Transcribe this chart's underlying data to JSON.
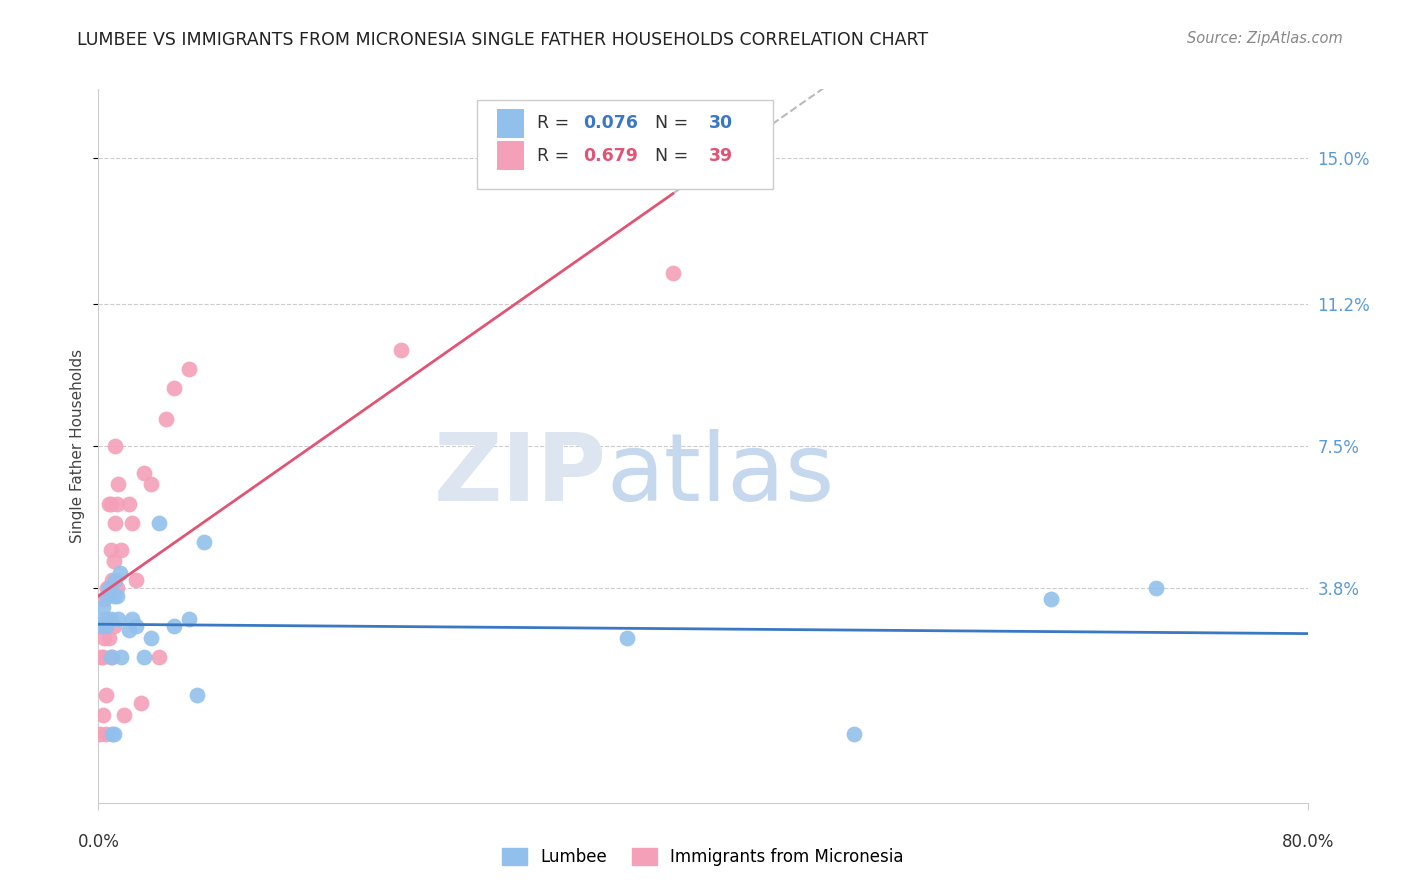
{
  "title": "LUMBEE VS IMMIGRANTS FROM MICRONESIA SINGLE FATHER HOUSEHOLDS CORRELATION CHART",
  "source": "Source: ZipAtlas.com",
  "ylabel": "Single Father Households",
  "ytick_labels": [
    "15.0%",
    "11.2%",
    "7.5%",
    "3.8%"
  ],
  "ytick_values": [
    0.15,
    0.112,
    0.075,
    0.038
  ],
  "xlim": [
    0.0,
    0.8
  ],
  "ylim": [
    -0.018,
    0.168
  ],
  "lumbee_R": 0.076,
  "lumbee_N": 30,
  "micronesia_R": 0.679,
  "micronesia_N": 39,
  "lumbee_color": "#92C0EC",
  "micronesia_color": "#F4A0B8",
  "lumbee_line_color": "#3B78C4",
  "micronesia_line_color": "#E05575",
  "background_color": "#FFFFFF",
  "lumbee_x": [
    0.002,
    0.003,
    0.004,
    0.005,
    0.006,
    0.007,
    0.008,
    0.008,
    0.009,
    0.01,
    0.01,
    0.011,
    0.012,
    0.013,
    0.014,
    0.015,
    0.02,
    0.022,
    0.025,
    0.03,
    0.035,
    0.04,
    0.05,
    0.06,
    0.065,
    0.07,
    0.35,
    0.5,
    0.63,
    0.7
  ],
  "lumbee_y": [
    0.028,
    0.033,
    0.03,
    0.028,
    0.036,
    0.038,
    0.03,
    0.02,
    0.0,
    0.036,
    0.0,
    0.04,
    0.036,
    0.03,
    0.042,
    0.02,
    0.027,
    0.03,
    0.028,
    0.02,
    0.025,
    0.055,
    0.028,
    0.03,
    0.01,
    0.05,
    0.025,
    0.0,
    0.035,
    0.038
  ],
  "micronesia_x": [
    0.001,
    0.002,
    0.002,
    0.003,
    0.003,
    0.004,
    0.004,
    0.005,
    0.005,
    0.006,
    0.006,
    0.007,
    0.007,
    0.008,
    0.008,
    0.009,
    0.009,
    0.01,
    0.01,
    0.011,
    0.011,
    0.012,
    0.012,
    0.013,
    0.015,
    0.017,
    0.02,
    0.022,
    0.025,
    0.028,
    0.03,
    0.035,
    0.04,
    0.045,
    0.05,
    0.06,
    0.2,
    0.38,
    0.001
  ],
  "micronesia_y": [
    0.028,
    0.02,
    0.028,
    0.005,
    0.02,
    0.025,
    0.035,
    0.01,
    0.0,
    0.03,
    0.038,
    0.025,
    0.06,
    0.048,
    0.06,
    0.02,
    0.04,
    0.045,
    0.028,
    0.055,
    0.075,
    0.038,
    0.06,
    0.065,
    0.048,
    0.005,
    0.06,
    0.055,
    0.04,
    0.008,
    0.068,
    0.065,
    0.02,
    0.082,
    0.09,
    0.095,
    0.1,
    0.12,
    0.0
  ]
}
